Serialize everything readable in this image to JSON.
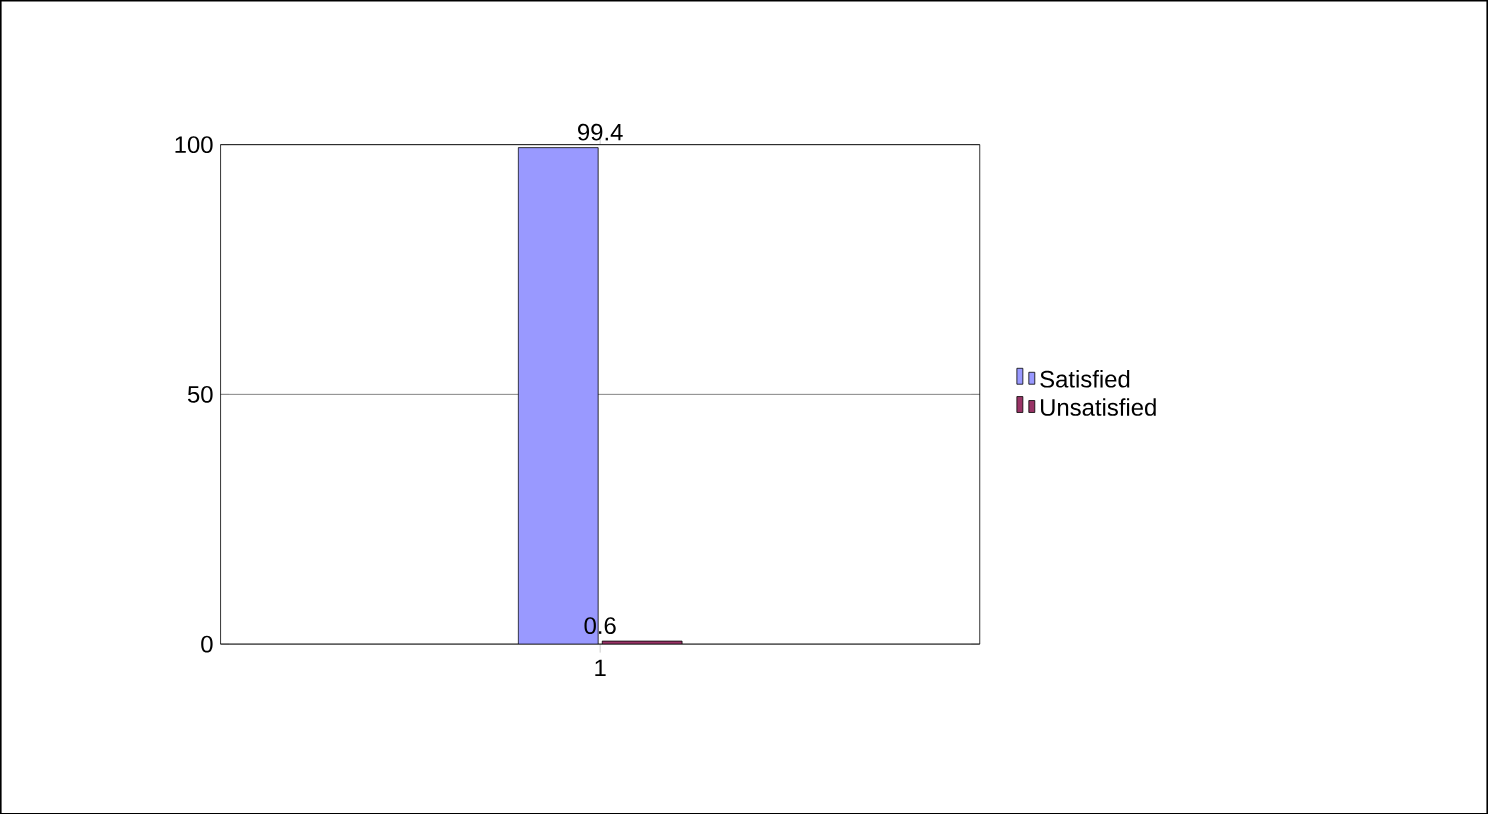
{
  "chart_data": {
    "type": "bar",
    "categories": [
      "1"
    ],
    "series": [
      {
        "name": "Satisfied",
        "color": "#9999ff",
        "values": [
          99.4
        ]
      },
      {
        "name": "Unsatisfied",
        "color": "#993366",
        "values": [
          0.6
        ]
      }
    ],
    "ylim": [
      0,
      100
    ],
    "yticks": [
      0,
      50,
      100
    ],
    "grid": "y",
    "legend": "right",
    "data_labels": true
  }
}
